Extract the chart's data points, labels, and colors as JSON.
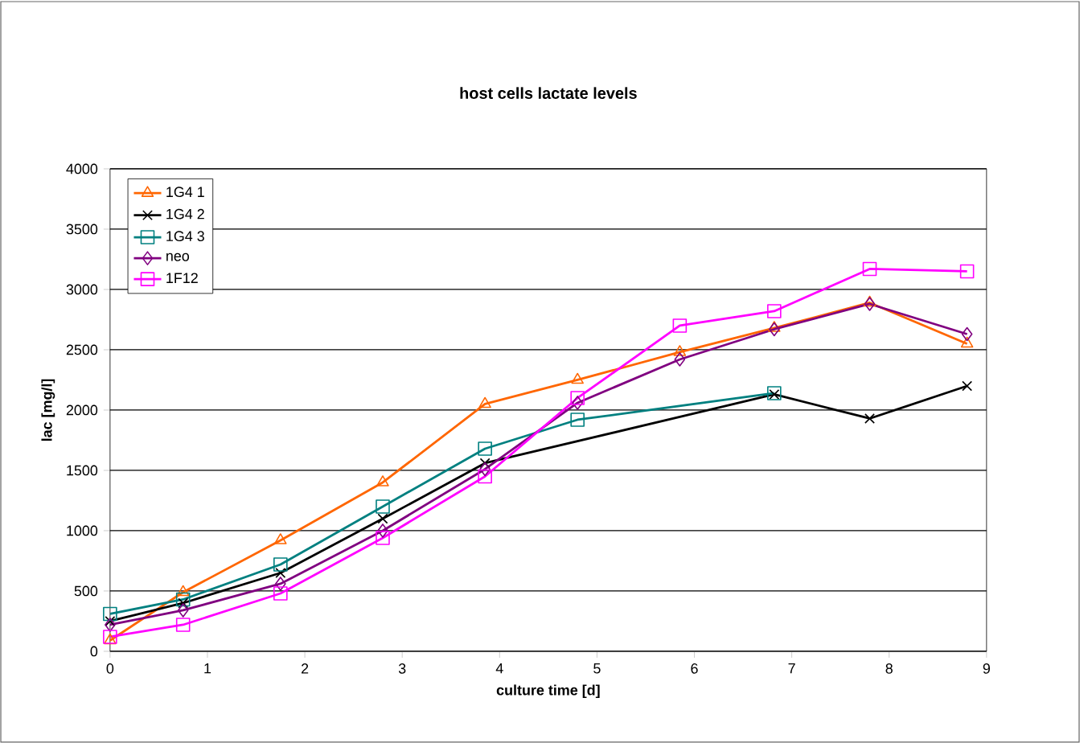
{
  "chart_data": {
    "type": "line",
    "title": "host cells lactate levels",
    "xlabel": "culture time [d]",
    "ylabel": "lac [mg/l]",
    "x": [
      0,
      0.75,
      1.75,
      2.8,
      3.85,
      4.8,
      5.85,
      6.82,
      7.8,
      8.8
    ],
    "xlim": [
      0,
      9
    ],
    "xticks": [
      0,
      1,
      2,
      3,
      4,
      5,
      6,
      7,
      8,
      9
    ],
    "ylim": [
      0,
      4000
    ],
    "yticks": [
      0,
      500,
      1000,
      1500,
      2000,
      2500,
      3000,
      3500,
      4000
    ],
    "grid": "y",
    "legend": "top left",
    "line_style": "solid",
    "series": [
      {
        "name": "1G4 1",
        "color": "#ff6600",
        "marker": "triangle",
        "values": [
          90,
          490,
          920,
          1400,
          2050,
          2250,
          2480,
          2680,
          2890,
          2550
        ]
      },
      {
        "name": "1G4 2",
        "color": "#000000",
        "marker": "cross",
        "values": [
          250,
          400,
          650,
          1100,
          1560,
          null,
          null,
          2130,
          1930,
          2200
        ]
      },
      {
        "name": "1G4 3",
        "color": "#008080",
        "marker": "square",
        "values": [
          310,
          430,
          720,
          1200,
          1680,
          1920,
          null,
          2140,
          null,
          null
        ]
      },
      {
        "name": "neo",
        "color": "#800080",
        "marker": "diamond",
        "values": [
          220,
          340,
          560,
          1000,
          1510,
          2060,
          2420,
          2670,
          2880,
          2630
        ]
      },
      {
        "name": "1F12",
        "color": "#ff00ff",
        "marker": "square",
        "values": [
          120,
          220,
          480,
          940,
          1450,
          2100,
          2700,
          2820,
          3170,
          3150
        ]
      }
    ]
  }
}
